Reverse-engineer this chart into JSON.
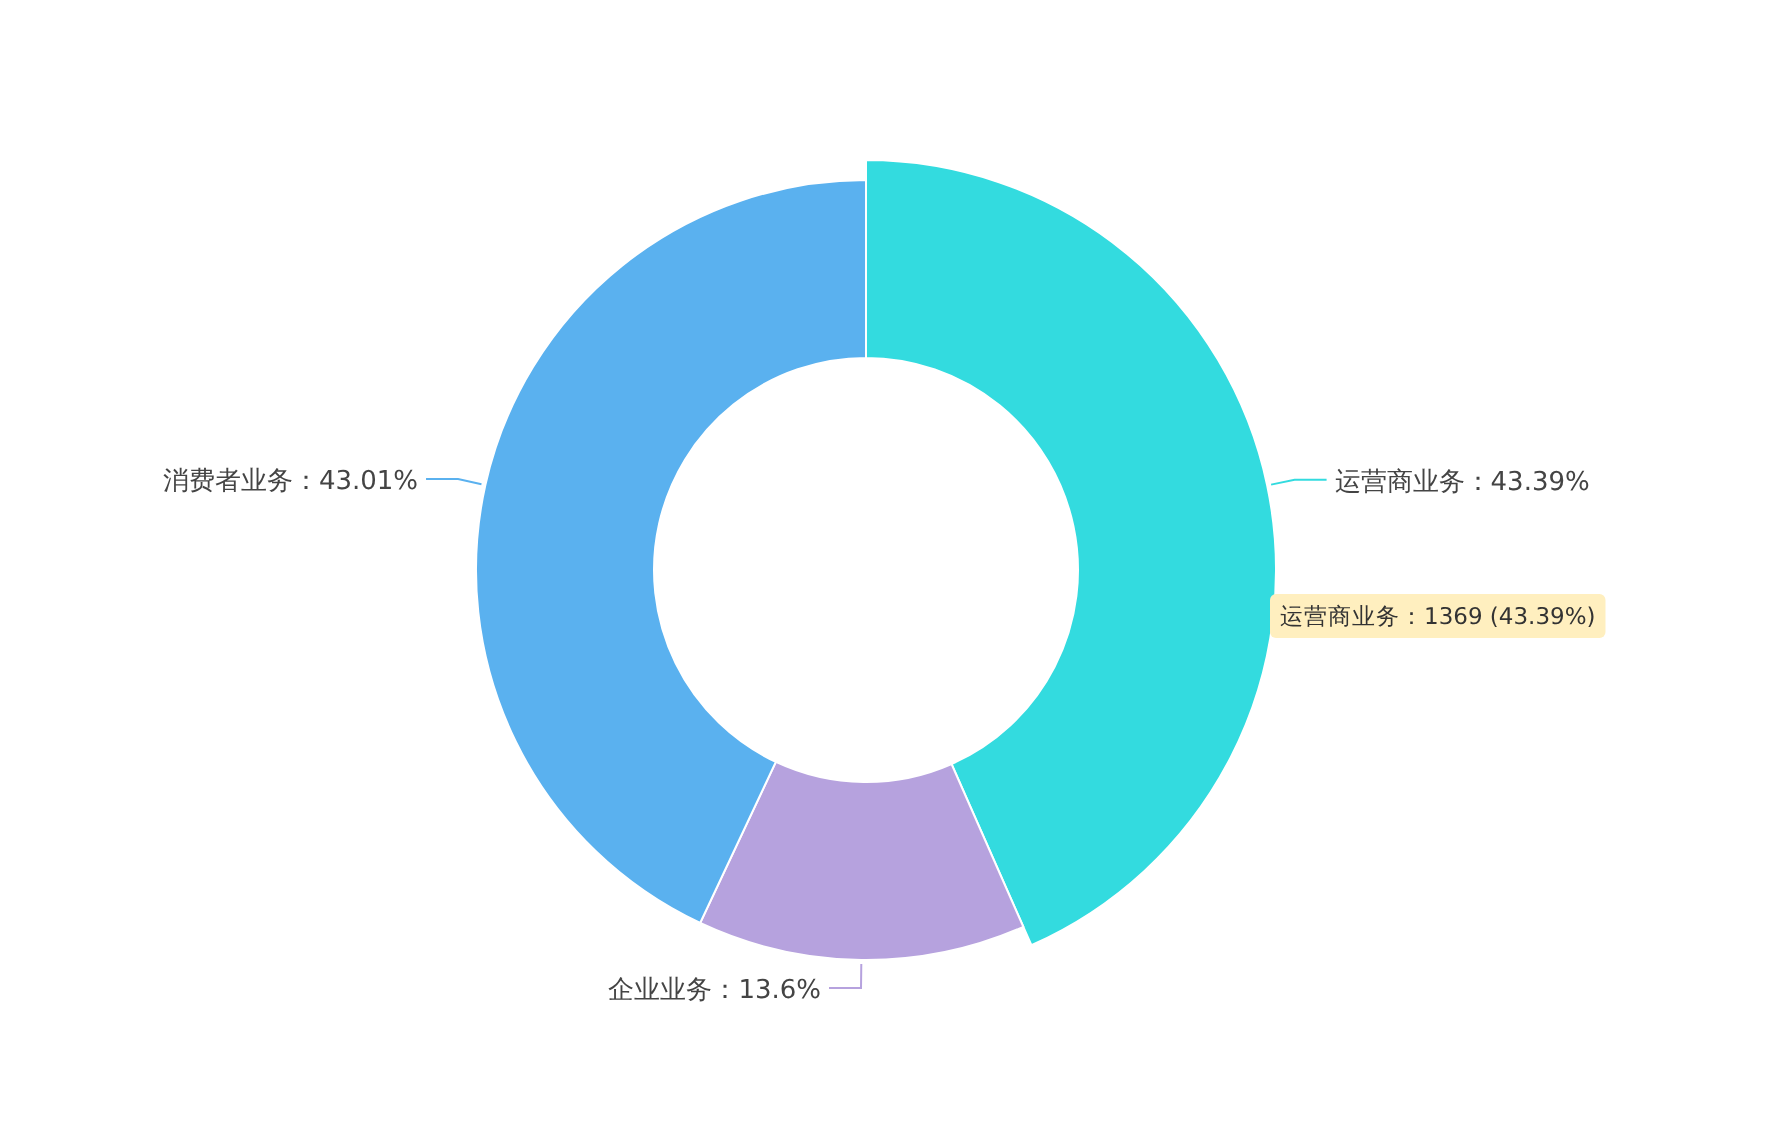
{
  "chart_data": {
    "type": "donut",
    "categories": [
      "运营商业务",
      "企业业务",
      "消费者业务"
    ],
    "values": [
      43.39,
      13.6,
      43.01
    ],
    "colors": [
      "#33dbdf",
      "#b6a2de",
      "#5ab1ef"
    ],
    "value_labels": [
      "：43.39%",
      "：13.6%",
      "：43.01%"
    ],
    "annotations": [
      "运营商业务：1369 (43.39%)"
    ]
  }
}
